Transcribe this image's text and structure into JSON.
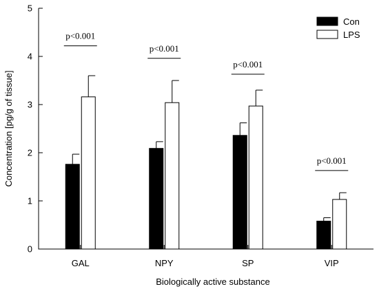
{
  "chart_data": {
    "type": "bar",
    "title": "",
    "xlabel": "Biologically active substance",
    "ylabel": "Concentration [pg/g of tissue]",
    "categories": [
      "GAL",
      "NPY",
      "SP",
      "VIP"
    ],
    "ylim": [
      0,
      5
    ],
    "yticks": [
      "0",
      "1",
      "2",
      "3",
      "4",
      "5"
    ],
    "grid": false,
    "legend_position": "top-right",
    "series": [
      {
        "name": "Con",
        "color": "#000000",
        "values": [
          1.76,
          2.09,
          2.36,
          0.58
        ],
        "errors": [
          0.21,
          0.14,
          0.26,
          0.07
        ]
      },
      {
        "name": "LPS",
        "color": "#ffffff",
        "values": [
          3.16,
          3.04,
          2.97,
          1.03
        ],
        "errors": [
          0.44,
          0.46,
          0.33,
          0.14
        ]
      }
    ],
    "annotations": [
      {
        "category": "GAL",
        "text": "p<0.001",
        "y": 4.22
      },
      {
        "category": "NPY",
        "text": "p<0.001",
        "y": 3.96
      },
      {
        "category": "SP",
        "text": "p<0.001",
        "y": 3.63
      },
      {
        "category": "VIP",
        "text": "p<0.001",
        "y": 1.63
      }
    ]
  }
}
